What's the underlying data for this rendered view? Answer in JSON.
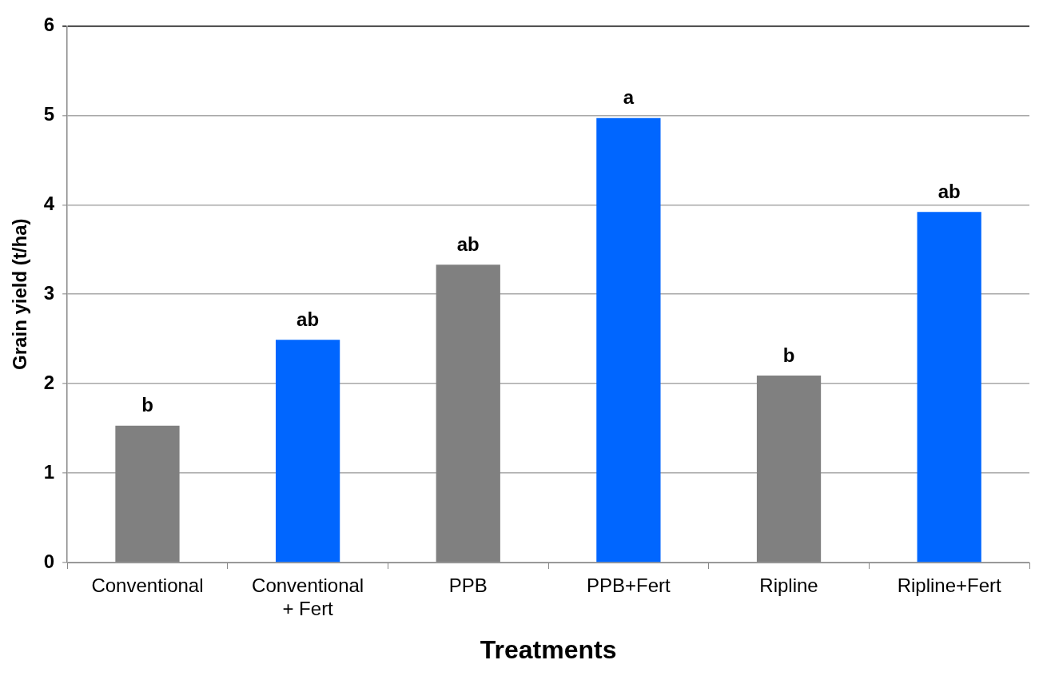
{
  "chart_data": {
    "type": "bar",
    "xlabel": "Treatments",
    "ylabel": "Grain yield (t/ha)",
    "categories": [
      "Conventional",
      "Conventional + Fert",
      "PPB",
      "PPB+Fert",
      "Ripline",
      "Ripline+Fert"
    ],
    "values": [
      1.53,
      2.49,
      3.33,
      4.97,
      2.09,
      3.92
    ],
    "colors": [
      "#808080",
      "#0066ff",
      "#808080",
      "#0066ff",
      "#808080",
      "#0066ff"
    ],
    "ylim": [
      0,
      6
    ],
    "yticks": [
      0,
      1,
      2,
      3,
      4,
      5,
      6
    ],
    "grid": "y",
    "legend": false,
    "annotations": [
      {
        "text": "b",
        "x": "Conventional",
        "y": 1.53
      },
      {
        "text": "ab",
        "x": "Conventional + Fert",
        "y": 2.49
      },
      {
        "text": "ab",
        "x": "PPB",
        "y": 3.33
      },
      {
        "text": "a",
        "x": "PPB+Fert",
        "y": 4.97
      },
      {
        "text": "b",
        "x": "Ripline",
        "y": 2.09
      },
      {
        "text": "ab",
        "x": "Ripline+Fert",
        "y": 3.92
      }
    ]
  }
}
